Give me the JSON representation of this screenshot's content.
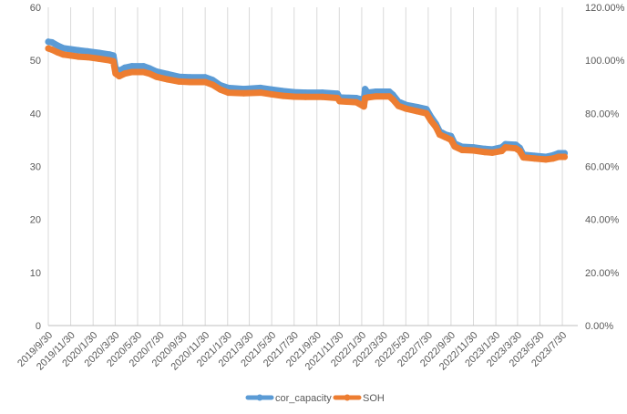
{
  "chart_data": {
    "type": "line",
    "title": "",
    "xlabel": "",
    "ylabel": "",
    "x_tick_labels": [
      "2019/9/30",
      "2019/11/30",
      "2020/1/30",
      "2020/3/30",
      "2020/5/30",
      "2020/7/30",
      "2020/9/30",
      "2020/11/30",
      "2021/1/30",
      "2021/3/30",
      "2021/5/30",
      "2021/7/30",
      "2021/9/30",
      "2021/11/30",
      "2022/1/30",
      "2022/3/30",
      "2022/5/30",
      "2022/7/30",
      "2022/9/30",
      "2022/11/30",
      "2023/1/30",
      "2023/3/30",
      "2023/5/30",
      "2023/7/30"
    ],
    "y_left": {
      "ticks": [
        0,
        10,
        20,
        30,
        40,
        50,
        60
      ],
      "ylim": [
        0,
        60
      ]
    },
    "y_right": {
      "ticks": [
        "0.00%",
        "20.00%",
        "40.00%",
        "60.00%",
        "80.00%",
        "100.00%",
        "120.00%"
      ],
      "ylim": [
        0,
        1.2
      ]
    },
    "grid": "vertical",
    "legend": "bottom",
    "series": [
      {
        "name": "cor_capacity",
        "axis": "left",
        "color": "#5B9BD5",
        "points": [
          [
            "2019-09-30",
            53.5
          ],
          [
            "2019-10-10",
            53.4
          ],
          [
            "2019-10-25",
            52.8
          ],
          [
            "2019-11-10",
            52.3
          ],
          [
            "2019-11-30",
            52.1
          ],
          [
            "2019-12-20",
            51.9
          ],
          [
            "2020-01-15",
            51.7
          ],
          [
            "2020-02-15",
            51.4
          ],
          [
            "2020-03-15",
            51.1
          ],
          [
            "2020-03-25",
            50.9
          ],
          [
            "2020-03-31",
            48.5
          ],
          [
            "2020-04-10",
            48.0
          ],
          [
            "2020-04-25",
            48.6
          ],
          [
            "2020-05-15",
            48.9
          ],
          [
            "2020-06-15",
            48.9
          ],
          [
            "2020-07-01",
            48.5
          ],
          [
            "2020-07-20",
            47.9
          ],
          [
            "2020-08-20",
            47.4
          ],
          [
            "2020-09-20",
            46.9
          ],
          [
            "2020-10-20",
            46.8
          ],
          [
            "2020-11-30",
            46.8
          ],
          [
            "2020-12-20",
            46.3
          ],
          [
            "2021-01-10",
            45.3
          ],
          [
            "2021-02-01",
            44.8
          ],
          [
            "2021-03-15",
            44.6
          ],
          [
            "2021-04-30",
            44.8
          ],
          [
            "2021-05-30",
            44.5
          ],
          [
            "2021-06-30",
            44.2
          ],
          [
            "2021-07-30",
            44.0
          ],
          [
            "2021-08-30",
            43.9
          ],
          [
            "2021-10-15",
            43.9
          ],
          [
            "2021-11-25",
            43.7
          ],
          [
            "2021-12-01",
            43.0
          ],
          [
            "2022-01-15",
            42.9
          ],
          [
            "2022-02-05",
            42.5
          ],
          [
            "2022-02-08",
            44.6
          ],
          [
            "2022-02-15",
            43.9
          ],
          [
            "2022-03-10",
            44.1
          ],
          [
            "2022-04-15",
            44.1
          ],
          [
            "2022-04-25",
            43.5
          ],
          [
            "2022-05-10",
            42.2
          ],
          [
            "2022-05-30",
            41.6
          ],
          [
            "2022-06-30",
            41.2
          ],
          [
            "2022-07-25",
            40.8
          ],
          [
            "2022-08-05",
            39.5
          ],
          [
            "2022-08-20",
            38.0
          ],
          [
            "2022-08-30",
            36.6
          ],
          [
            "2022-09-15",
            36.0
          ],
          [
            "2022-09-30",
            35.7
          ],
          [
            "2022-10-10",
            34.3
          ],
          [
            "2022-10-30",
            33.7
          ],
          [
            "2022-11-30",
            33.6
          ],
          [
            "2022-12-31",
            33.3
          ],
          [
            "2023-01-20",
            33.2
          ],
          [
            "2023-02-15",
            33.6
          ],
          [
            "2023-02-25",
            34.2
          ],
          [
            "2023-03-25",
            34.1
          ],
          [
            "2023-04-05",
            33.5
          ],
          [
            "2023-04-15",
            32.2
          ],
          [
            "2023-05-15",
            32.0
          ],
          [
            "2023-06-15",
            31.8
          ],
          [
            "2023-07-05",
            32.1
          ],
          [
            "2023-07-20",
            32.5
          ],
          [
            "2023-08-05",
            32.5
          ]
        ]
      },
      {
        "name": "SOH",
        "axis": "right",
        "color": "#ED7D31",
        "points": [
          [
            "2019-09-30",
            1.045
          ],
          [
            "2019-10-10",
            1.04
          ],
          [
            "2019-10-25",
            1.03
          ],
          [
            "2019-11-10",
            1.022
          ],
          [
            "2019-11-30",
            1.018
          ],
          [
            "2019-12-20",
            1.014
          ],
          [
            "2020-01-15",
            1.012
          ],
          [
            "2020-02-15",
            1.006
          ],
          [
            "2020-03-15",
            1.0
          ],
          [
            "2020-03-25",
            0.996
          ],
          [
            "2020-03-31",
            0.95
          ],
          [
            "2020-04-10",
            0.94
          ],
          [
            "2020-04-25",
            0.95
          ],
          [
            "2020-05-15",
            0.956
          ],
          [
            "2020-06-15",
            0.956
          ],
          [
            "2020-07-01",
            0.95
          ],
          [
            "2020-07-20",
            0.938
          ],
          [
            "2020-08-20",
            0.928
          ],
          [
            "2020-09-20",
            0.92
          ],
          [
            "2020-10-20",
            0.918
          ],
          [
            "2020-11-30",
            0.918
          ],
          [
            "2020-12-20",
            0.908
          ],
          [
            "2021-01-10",
            0.89
          ],
          [
            "2021-02-01",
            0.878
          ],
          [
            "2021-03-15",
            0.876
          ],
          [
            "2021-04-30",
            0.878
          ],
          [
            "2021-05-30",
            0.872
          ],
          [
            "2021-06-30",
            0.866
          ],
          [
            "2021-07-30",
            0.863
          ],
          [
            "2021-08-30",
            0.862
          ],
          [
            "2021-10-15",
            0.862
          ],
          [
            "2021-11-25",
            0.858
          ],
          [
            "2021-12-01",
            0.846
          ],
          [
            "2022-01-15",
            0.842
          ],
          [
            "2022-02-05",
            0.826
          ],
          [
            "2022-02-08",
            0.858
          ],
          [
            "2022-02-15",
            0.86
          ],
          [
            "2022-03-10",
            0.864
          ],
          [
            "2022-04-15",
            0.864
          ],
          [
            "2022-04-25",
            0.852
          ],
          [
            "2022-05-10",
            0.828
          ],
          [
            "2022-05-30",
            0.818
          ],
          [
            "2022-06-30",
            0.808
          ],
          [
            "2022-07-25",
            0.8
          ],
          [
            "2022-08-05",
            0.775
          ],
          [
            "2022-08-20",
            0.748
          ],
          [
            "2022-08-30",
            0.72
          ],
          [
            "2022-09-15",
            0.71
          ],
          [
            "2022-09-30",
            0.7
          ],
          [
            "2022-10-10",
            0.675
          ],
          [
            "2022-10-30",
            0.662
          ],
          [
            "2022-11-30",
            0.66
          ],
          [
            "2022-12-31",
            0.654
          ],
          [
            "2023-01-20",
            0.652
          ],
          [
            "2023-02-15",
            0.658
          ],
          [
            "2023-02-25",
            0.672
          ],
          [
            "2023-03-25",
            0.668
          ],
          [
            "2023-04-05",
            0.658
          ],
          [
            "2023-04-15",
            0.634
          ],
          [
            "2023-05-15",
            0.63
          ],
          [
            "2023-06-15",
            0.626
          ],
          [
            "2023-07-05",
            0.63
          ],
          [
            "2023-07-20",
            0.636
          ],
          [
            "2023-08-05",
            0.636
          ]
        ]
      }
    ]
  }
}
